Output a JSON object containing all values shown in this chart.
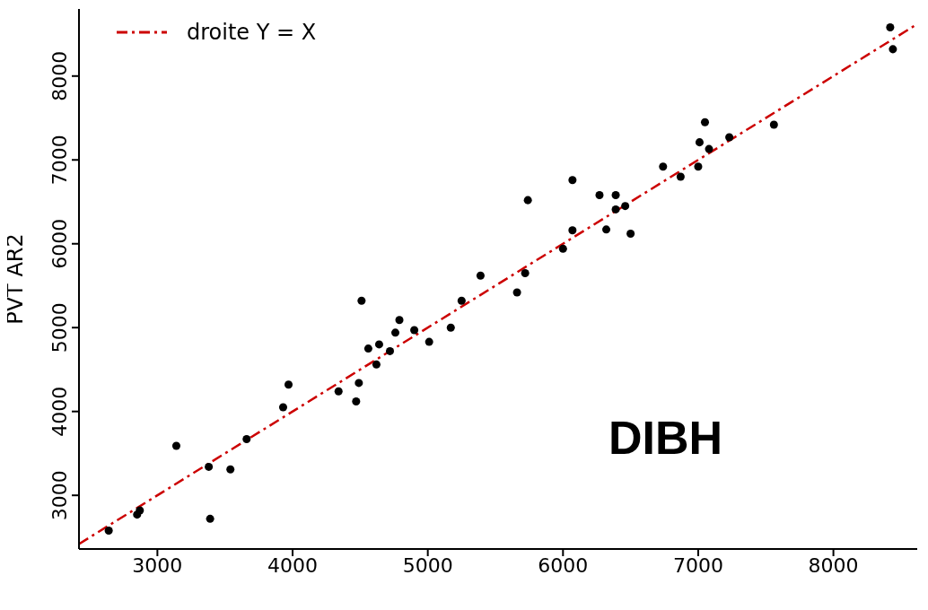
{
  "chart_data": {
    "type": "scatter",
    "ylabel": "PVT AR2",
    "annotations": [
      "DIBH"
    ],
    "xlim": [
      2420,
      8620
    ],
    "ylim": [
      2360,
      8800
    ],
    "xticks": [
      3000,
      4000,
      5000,
      6000,
      7000,
      8000
    ],
    "yticks": [
      3000,
      4000,
      5000,
      6000,
      7000,
      8000
    ],
    "legend": "top left",
    "marker": "circle",
    "series": [
      {
        "color": "#000000",
        "x": [
          2640,
          2850,
          2870,
          3140,
          3380,
          3390,
          3540,
          3660,
          3930,
          3970,
          4340,
          4470,
          4490,
          4510,
          4560,
          4620,
          4640,
          4720,
          4760,
          4790,
          4900,
          5010,
          5170,
          5250,
          5390,
          5660,
          5720,
          5740,
          6000,
          6070,
          6070,
          6270,
          6320,
          6390,
          6390,
          6460,
          6500,
          6740,
          6870,
          7000,
          7010,
          7050,
          7080,
          7230,
          7560,
          8420,
          8440
        ],
        "values": [
          2580,
          2770,
          2820,
          3590,
          3340,
          2720,
          3310,
          3670,
          4050,
          4320,
          4240,
          4120,
          4340,
          5320,
          4750,
          4560,
          4800,
          4720,
          4940,
          5090,
          4970,
          4830,
          5000,
          5320,
          5620,
          5420,
          5650,
          6520,
          5940,
          6160,
          6760,
          6580,
          6170,
          6580,
          6410,
          6450,
          6120,
          6920,
          6800,
          6920,
          7210,
          7450,
          7130,
          7270,
          7420,
          8580,
          8320
        ]
      },
      {
        "type": "line",
        "name": "droite Y = X",
        "color": "#cc0000",
        "line_style": "dashdot",
        "marker": "none",
        "x": [
          2420,
          8620
        ],
        "values": [
          2420,
          8620
        ]
      }
    ]
  }
}
